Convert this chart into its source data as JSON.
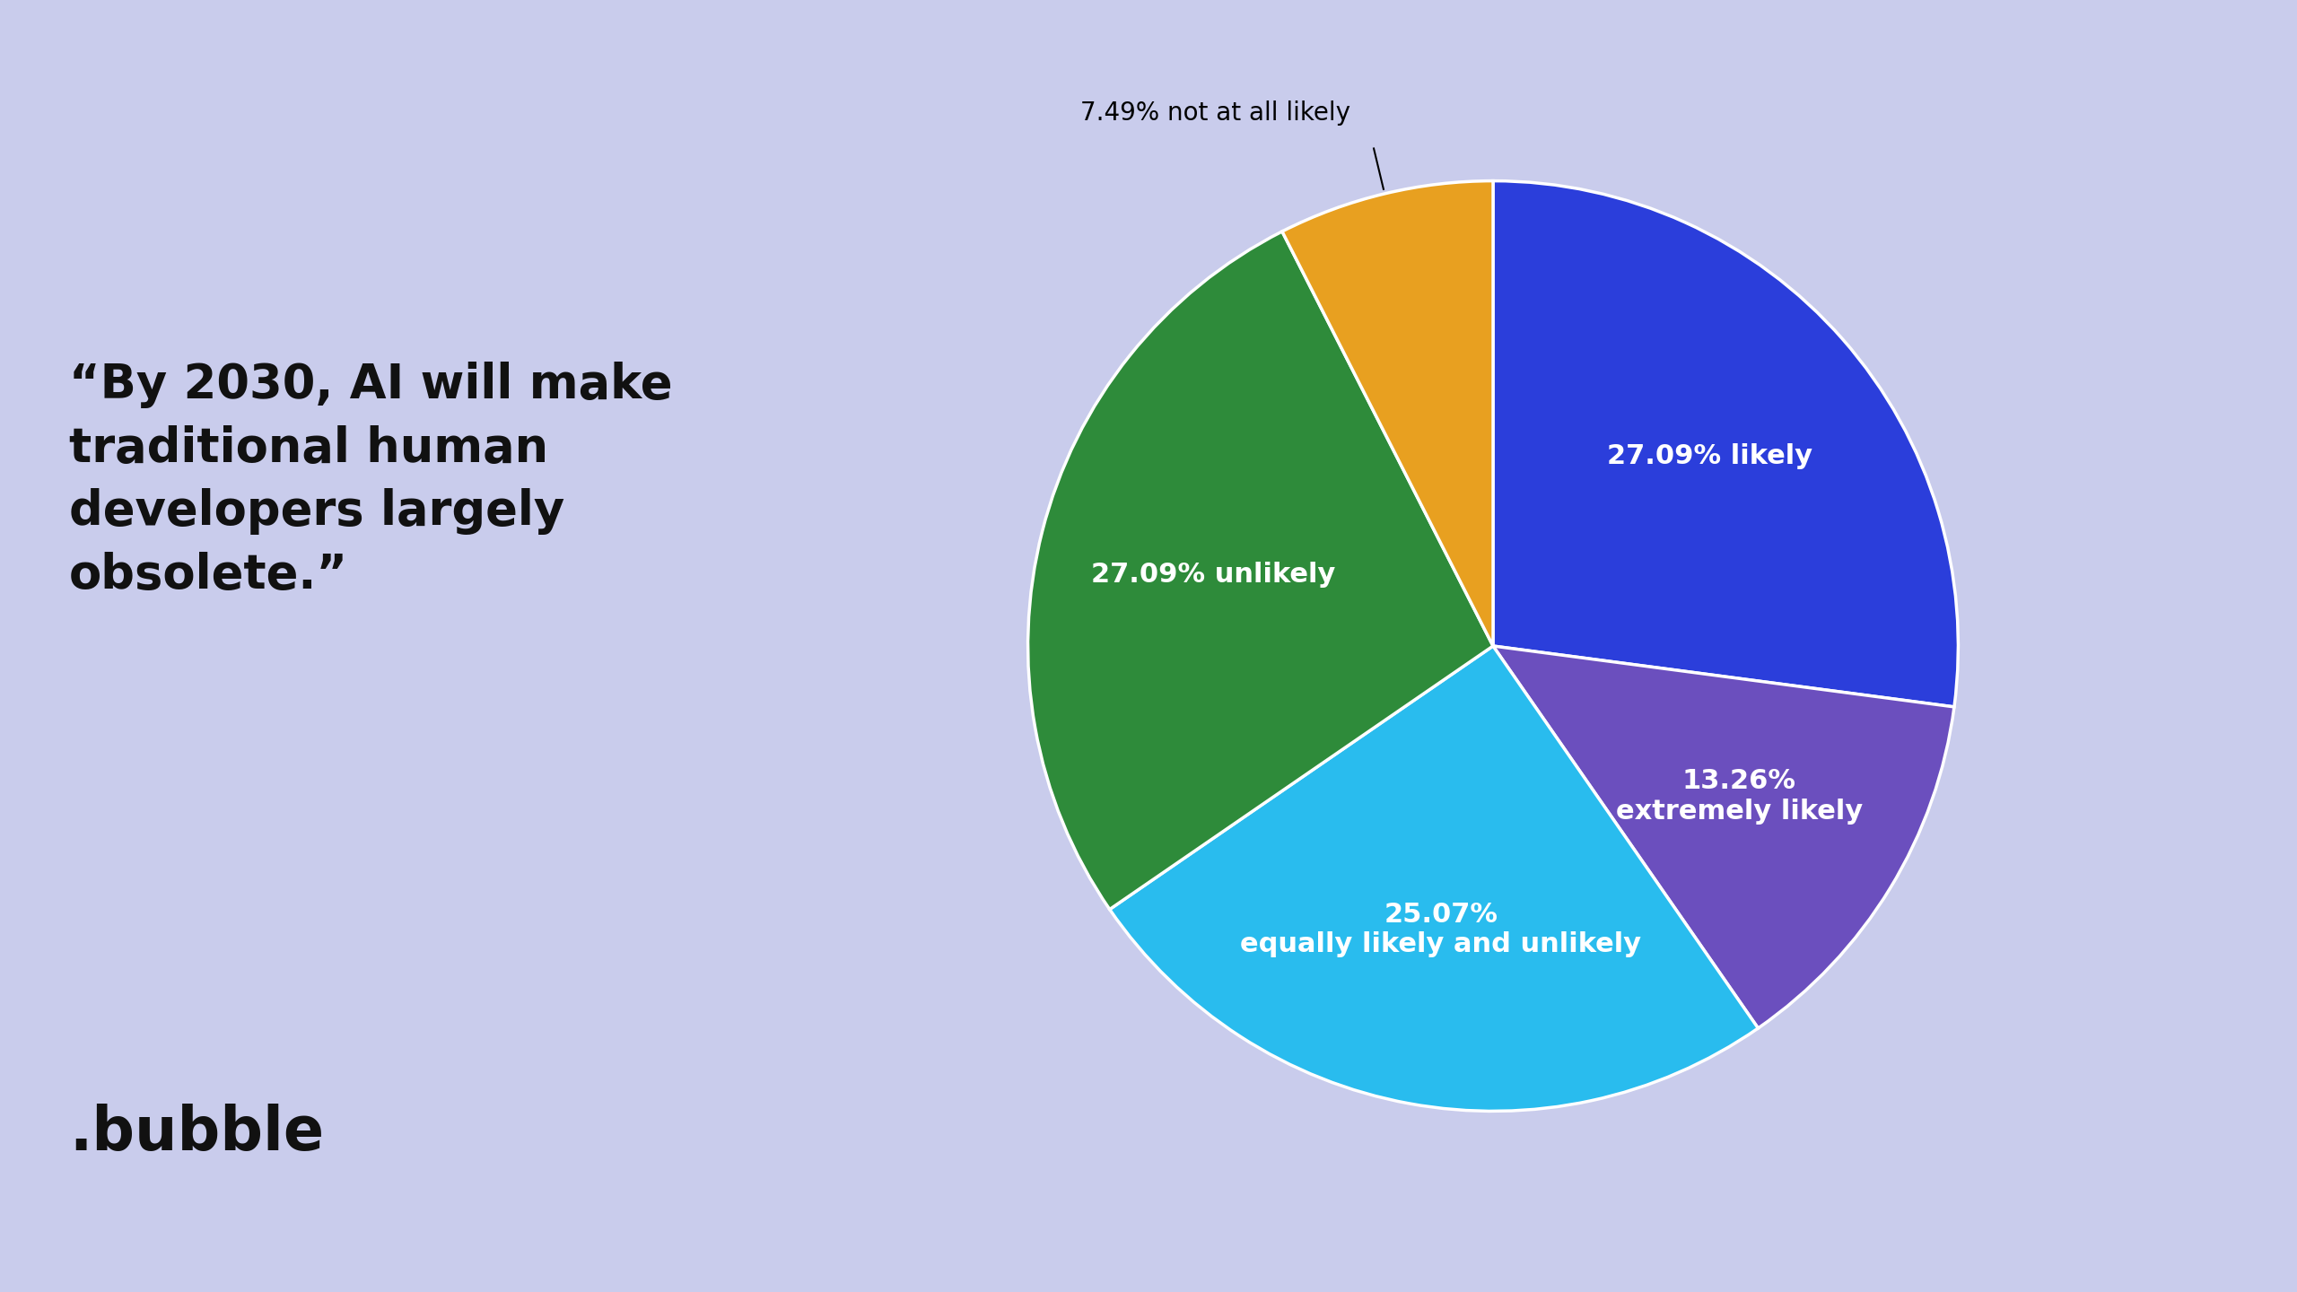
{
  "slices": [
    {
      "label": "27.09% likely",
      "value": 27.09,
      "color": "#2B3EDB",
      "text_color": "white",
      "inside": true
    },
    {
      "label": "13.26%\nextremely likely",
      "value": 13.26,
      "color": "#6B4FBE",
      "text_color": "white",
      "inside": true
    },
    {
      "label": "25.07%\nequally likely and unlikely",
      "value": 25.07,
      "color": "#29BCEE",
      "text_color": "white",
      "inside": true
    },
    {
      "label": "27.09% unlikely",
      "value": 27.09,
      "color": "#2E8B3A",
      "text_color": "white",
      "inside": true
    },
    {
      "label": "7.49% not at all likely",
      "value": 7.49,
      "color": "#E8A020",
      "text_color": "black",
      "inside": false
    }
  ],
  "background_color": "#C9CCEC",
  "quote_text": "“By 2030, AI will make\ntraditional human\ndevelopers largely\nobsolete.”",
  "quote_fontsize": 38,
  "quote_color": "#111111",
  "brand_text": ".bubble",
  "brand_fontsize": 48,
  "brand_color": "#111111",
  "inner_label_fontsize": 22,
  "outer_label_fontsize": 20,
  "wedge_linewidth": 2.5,
  "wedge_linecolor": "white"
}
